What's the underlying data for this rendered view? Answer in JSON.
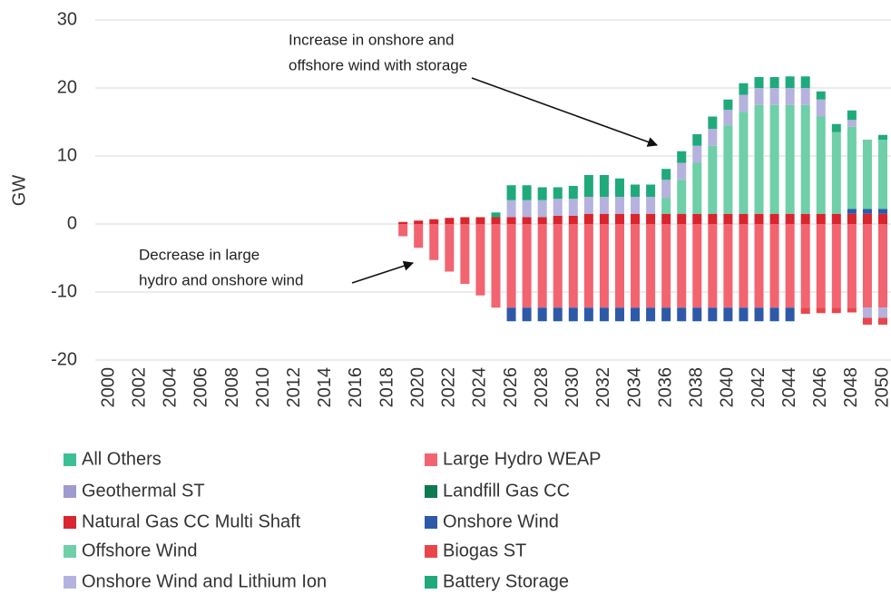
{
  "chart_data": {
    "type": "stacked_bar",
    "y_label": "GW",
    "categories": [
      "2000",
      null,
      "2002",
      null,
      "2004",
      null,
      "2006",
      null,
      "2008",
      null,
      "2010",
      null,
      "2012",
      null,
      "2014",
      null,
      "2016",
      null,
      "2018",
      null,
      "2020",
      null,
      "2022",
      null,
      "2024",
      null,
      "2026",
      null,
      "2028",
      null,
      "2030",
      null,
      "2032",
      null,
      "2034",
      null,
      "2036",
      null,
      "2038",
      null,
      "2040",
      null,
      "2042",
      null,
      "2044",
      null,
      "2046",
      null,
      "2048",
      null,
      "2050"
    ],
    "ylim": [
      -20,
      30
    ],
    "yticks": [
      -20,
      -10,
      0,
      10,
      20,
      30
    ],
    "grid": true,
    "annotations": [
      {
        "lines": [
          "Increase in onshore and",
          "offshore wind with storage"
        ]
      },
      {
        "lines": [
          "Decrease in large",
          "hydro and onshore wind"
        ]
      }
    ],
    "series": [
      {
        "name": "All Others",
        "color": "#3dbf95",
        "values": [
          0,
          0,
          0,
          0,
          0,
          0,
          0,
          0,
          0,
          0,
          0,
          0,
          0,
          0,
          0,
          0,
          0,
          0,
          0,
          0,
          0,
          0,
          0,
          0,
          0,
          0,
          0,
          0,
          0,
          0,
          0,
          0,
          0,
          0,
          0,
          0,
          0,
          0,
          0,
          0,
          0,
          0,
          0,
          0,
          0,
          0,
          0,
          0,
          0,
          0,
          0
        ]
      },
      {
        "name": "Large Hydro WEAP",
        "color": "#f26470",
        "values": [
          0,
          0,
          0,
          0,
          0,
          0,
          0,
          0,
          0,
          0,
          0,
          0,
          0,
          0,
          0,
          0,
          0,
          0,
          0,
          -1.8,
          -3.5,
          -5.3,
          -7.0,
          -8.8,
          -10.5,
          -12.3,
          -12.3,
          -12.3,
          -12.3,
          -12.3,
          -12.3,
          -12.3,
          -12.3,
          -12.3,
          -12.3,
          -12.3,
          -12.3,
          -12.3,
          -12.3,
          -12.3,
          -12.3,
          -12.3,
          -12.3,
          -12.3,
          -12.3,
          -12.3,
          -12.3,
          -12.3,
          -12.3,
          -12.3,
          -12.3
        ]
      },
      {
        "name": "Geothermal ST",
        "color": "#9f9bcf",
        "values": [
          0,
          0,
          0,
          0,
          0,
          0,
          0,
          0,
          0,
          0,
          0,
          0,
          0,
          0,
          0,
          0,
          0,
          0,
          0,
          0,
          0,
          0,
          0,
          0,
          0,
          0,
          0,
          0,
          0,
          0,
          0,
          0,
          0,
          0,
          0,
          0,
          0,
          0,
          0,
          0,
          0,
          0,
          0,
          0,
          0,
          0,
          0,
          0,
          0,
          0,
          0
        ]
      },
      {
        "name": "Landfill Gas CC",
        "color": "#0d7a52",
        "values": [
          0,
          0,
          0,
          0,
          0,
          0,
          0,
          0,
          0,
          0,
          0,
          0,
          0,
          0,
          0,
          0,
          0,
          0,
          0,
          0,
          0,
          0,
          0,
          0,
          0,
          0,
          0,
          0,
          0,
          0,
          0,
          0,
          0,
          0,
          0,
          0,
          0,
          0,
          0,
          0,
          0,
          0,
          0,
          0,
          0,
          0,
          0,
          0,
          0,
          0,
          0
        ]
      },
      {
        "name": "Natural Gas CC Multi Shaft",
        "color": "#d9252e",
        "values": [
          0,
          0,
          0,
          0,
          0,
          0,
          0,
          0,
          0,
          0,
          0,
          0,
          0,
          0,
          0,
          0,
          0,
          0,
          0,
          0.3,
          0.5,
          0.7,
          0.9,
          1.0,
          1.0,
          1.0,
          1.0,
          1.0,
          1.0,
          1.2,
          1.2,
          1.5,
          1.5,
          1.5,
          1.5,
          1.5,
          1.5,
          1.5,
          1.5,
          1.5,
          1.5,
          1.5,
          1.5,
          1.5,
          1.5,
          1.5,
          1.5,
          1.5,
          1.5,
          1.5,
          1.5
        ]
      },
      {
        "name": "Onshore Wind",
        "color": "#2d5aa8",
        "values": [
          0,
          0,
          0,
          0,
          0,
          0,
          0,
          0,
          0,
          0,
          0,
          0,
          0,
          0,
          0,
          0,
          0,
          0,
          0,
          0,
          0,
          0,
          0,
          0,
          0,
          0,
          -2.0,
          -2.0,
          -2.0,
          -2.0,
          -2.0,
          -2.0,
          -2.0,
          -2.0,
          -2.0,
          -2.0,
          -2.0,
          -2.0,
          -2.0,
          -2.0,
          -2.0,
          -2.0,
          -2.0,
          -2.0,
          -2.0,
          0,
          0,
          0,
          0.7,
          0.7,
          0.7
        ]
      },
      {
        "name": "Offshore Wind",
        "color": "#6ecfa9",
        "values": [
          0,
          0,
          0,
          0,
          0,
          0,
          0,
          0,
          0,
          0,
          0,
          0,
          0,
          0,
          0,
          0,
          0,
          0,
          0,
          0,
          0,
          0,
          0,
          0,
          0,
          0,
          0,
          0,
          0,
          0,
          0,
          0,
          0,
          0,
          0,
          0,
          2.3,
          5.0,
          7.5,
          10.0,
          13.0,
          15.0,
          16.0,
          16.0,
          16.0,
          16.0,
          14.3,
          12.0,
          12.1,
          10.2,
          10.2
        ]
      },
      {
        "name": "Biogas ST",
        "color": "#e9464c",
        "values": [
          0,
          0,
          0,
          0,
          0,
          0,
          0,
          0,
          0,
          0,
          0,
          0,
          0,
          0,
          0,
          0,
          0,
          0,
          0,
          0,
          0,
          0,
          0,
          0,
          0,
          0,
          0,
          0,
          0,
          0,
          0,
          0,
          0,
          0,
          0,
          0,
          0,
          0,
          0,
          0,
          0,
          0,
          0,
          0,
          0,
          -0.9,
          -0.8,
          -0.8,
          -0.7,
          -1.0,
          -1.0
        ]
      },
      {
        "name": "Onshore Wind and Lithium Ion",
        "color": "#b5b3dd",
        "values": [
          0,
          0,
          0,
          0,
          0,
          0,
          0,
          0,
          0,
          0,
          0,
          0,
          0,
          0,
          0,
          0,
          0,
          0,
          0,
          0,
          0,
          0,
          0,
          0,
          0,
          0,
          2.5,
          2.5,
          2.5,
          2.5,
          2.5,
          2.5,
          2.5,
          2.5,
          2.5,
          2.5,
          2.7,
          2.5,
          2.5,
          2.5,
          2.3,
          2.5,
          2.5,
          2.5,
          2.5,
          2.5,
          2.5,
          0,
          1.0,
          -1.5,
          -1.5
        ]
      },
      {
        "name": "Battery Storage",
        "color": "#20aa7b",
        "values": [
          0,
          0,
          0,
          0,
          0,
          0,
          0,
          0,
          0,
          0,
          0,
          0,
          0,
          0,
          0,
          0,
          0,
          0,
          0,
          0,
          0,
          0,
          0,
          0,
          0,
          0.7,
          2.2,
          2.2,
          1.9,
          1.7,
          1.9,
          3.2,
          3.2,
          2.7,
          1.8,
          1.8,
          1.6,
          1.7,
          1.7,
          1.8,
          1.5,
          1.7,
          1.6,
          1.6,
          1.7,
          1.7,
          1.2,
          1.2,
          1.4,
          0,
          0.7
        ]
      }
    ]
  }
}
